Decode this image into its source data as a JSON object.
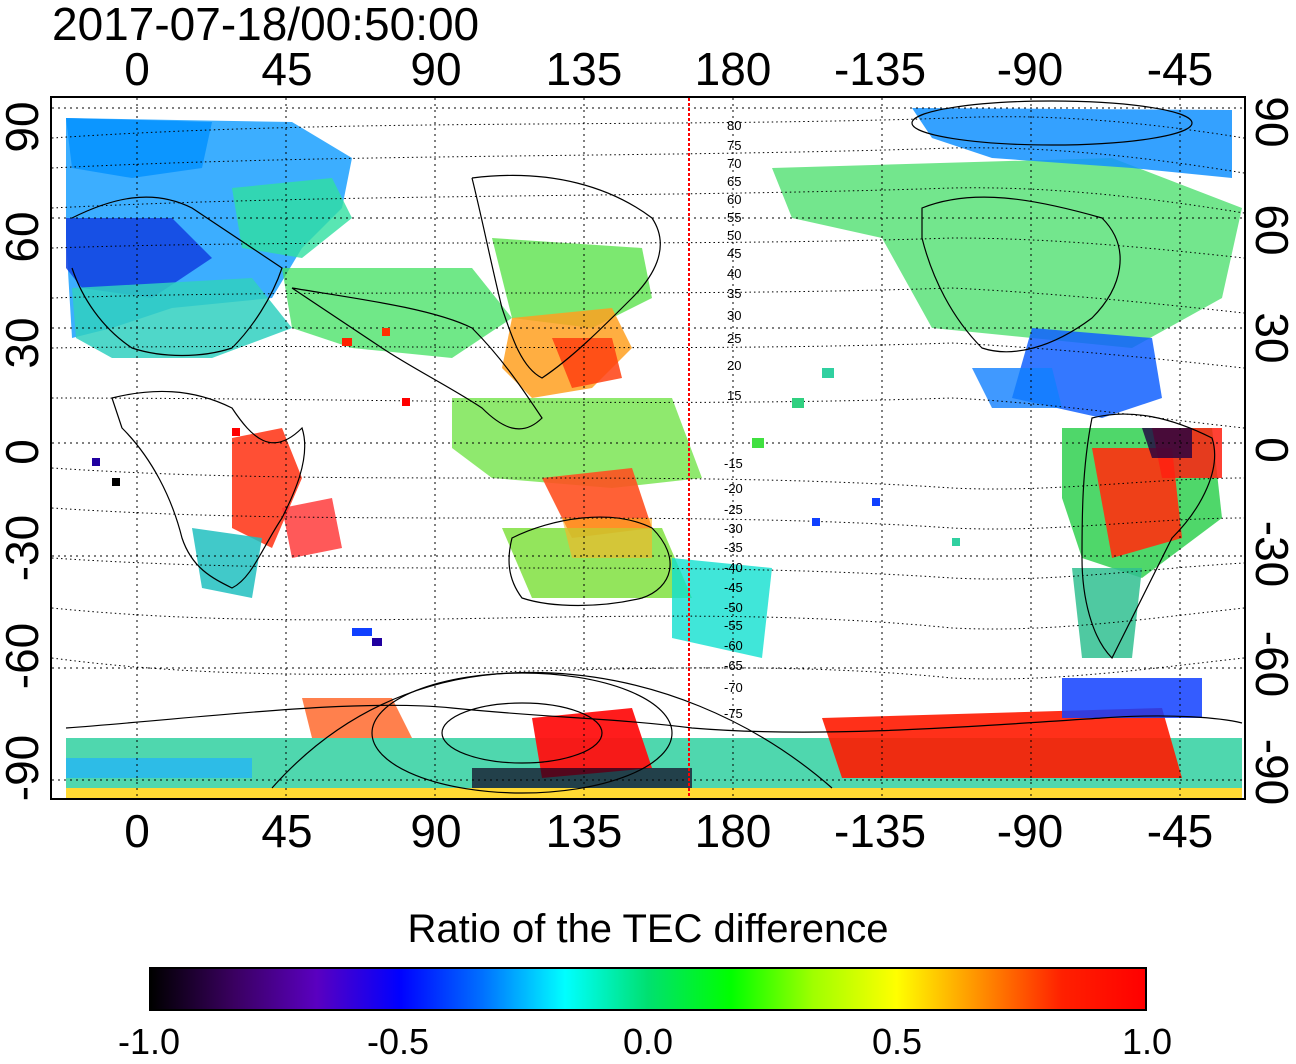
{
  "title": "2017-07-18/00:50:00",
  "lon_ticks_top": [
    "0",
    "45",
    "90",
    "135",
    "180",
    "-135",
    "-90",
    "-45"
  ],
  "lon_ticks_bottom": [
    "0",
    "45",
    "90",
    "135",
    "180",
    "-135",
    "-90",
    "-45"
  ],
  "lat_ticks_left": [
    "90",
    "60",
    "30",
    "0",
    "-30",
    "-60",
    "-90"
  ],
  "lat_ticks_right": [
    "90",
    "60",
    "30",
    "0",
    "-30",
    "-60",
    "-90"
  ],
  "contour_labels_north": [
    "80",
    "75",
    "70",
    "65",
    "60",
    "55",
    "50",
    "45",
    "40",
    "35",
    "30",
    "25",
    "20",
    "15"
  ],
  "contour_labels_south": [
    "-15",
    "-20",
    "-25",
    "-30",
    "-35",
    "-40",
    "-45",
    "-50",
    "-55",
    "-60",
    "-65",
    "-70",
    "-75"
  ],
  "colorbar": {
    "title": "Ratio of the TEC difference",
    "tick_labels": [
      "-1.0",
      "-0.5",
      "0.0",
      "0.5",
      "1.0"
    ],
    "colors": [
      "#000000",
      "#3a0060",
      "#5a00c0",
      "#0000ff",
      "#0070ff",
      "#00ffff",
      "#00e070",
      "#00ff00",
      "#a0ff00",
      "#ffff00",
      "#ff9000",
      "#ff2000",
      "#ff0000"
    ]
  },
  "map": {
    "projection": "equirectangular, centered at 150E",
    "terminator_longitude": "166"
  }
}
